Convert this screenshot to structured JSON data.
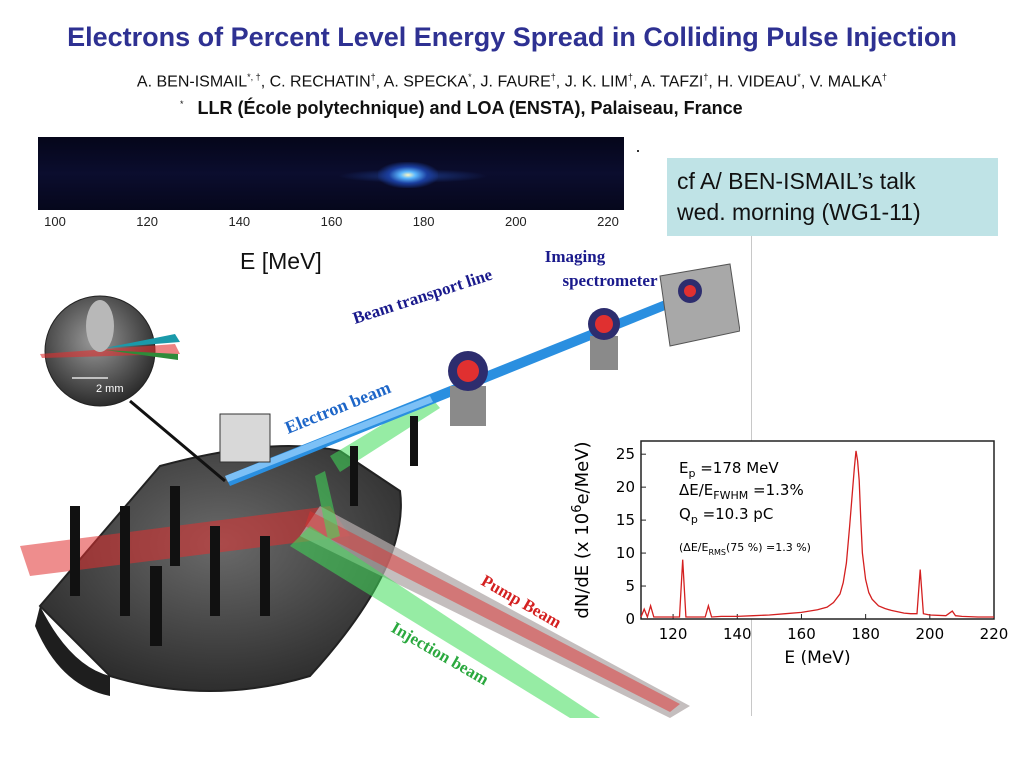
{
  "slide": {
    "title": "Electrons of Percent Level Energy Spread in Colliding Pulse Injection",
    "authors": [
      {
        "name": "A. BEN-ISMAIL",
        "mark": "*, †"
      },
      {
        "name": "C. RECHATIN",
        "mark": "†"
      },
      {
        "name": "A. SPECKA",
        "mark": "*"
      },
      {
        "name": "J. FAURE",
        "mark": "†"
      },
      {
        "name": "J. K. LIM",
        "mark": "†"
      },
      {
        "name": "A. TAFZI",
        "mark": "†"
      },
      {
        "name": "H. VIDEAU",
        "mark": "*"
      },
      {
        "name": "V. MALKA",
        "mark": "†"
      }
    ],
    "affiliation_mark": "*",
    "affiliation": "LLR (École polytechnique) and LOA (ENSTA), Palaiseau, France",
    "note_line1": "cf A/ BEN-ISMAIL’s talk",
    "note_line2": "wed. morning (WG1-11)",
    "energy_label": "E [MeV]"
  },
  "spectrometer_image": {
    "tick_labels": [
      "100",
      "120",
      "140",
      "160",
      "180",
      "200",
      "220"
    ]
  },
  "setup": {
    "labels": {
      "beam_transport": "Beam transport line",
      "imaging1": "Imaging",
      "imaging2": "spectrometer",
      "electron_beam": "Electron beam",
      "pump_beam": "Pump Beam",
      "injection_beam": "Injection beam",
      "scale": "2 mm"
    },
    "colors": {
      "electron_beam": "#2a8fe0",
      "pump_beam": "#e03030",
      "injection_beam": "#3fdc5a",
      "label_text": "#1a1a8c"
    }
  },
  "chart_data": {
    "type": "line",
    "xlabel": "E (MeV)",
    "ylabel": "dN/dE (x 10",
    "ylabel_sup": "6",
    "ylabel_tail": "e/MeV)",
    "xlim": [
      110,
      220
    ],
    "ylim": [
      0,
      27
    ],
    "xticks": [
      120,
      140,
      160,
      180,
      200,
      220
    ],
    "yticks": [
      0,
      5,
      10,
      15,
      20,
      25
    ],
    "grid": false,
    "color": "#d42020",
    "annotations": [
      {
        "main": "E",
        "sub": "p",
        "rest": " =178 MeV"
      },
      {
        "main": "ΔE/E",
        "sub": "FWHM",
        "rest": " =1.3%"
      },
      {
        "main": "Q",
        "sub": "p",
        "rest": " =10.3 pC"
      },
      {
        "main": "(ΔE/E",
        "sub": "RMS",
        "rest": "(75 %) =1.3 %)"
      }
    ],
    "series": [
      {
        "x": [
          110,
          111,
          112,
          113,
          114,
          115,
          120,
          122,
          123,
          124,
          126,
          130,
          131,
          132,
          135,
          140,
          145,
          150,
          155,
          160,
          165,
          168,
          170,
          172,
          173,
          174,
          175,
          176,
          176.5,
          177,
          177.5,
          178,
          178.5,
          179,
          180,
          181,
          182,
          184,
          186,
          188,
          190,
          192,
          194,
          196,
          197,
          198,
          200,
          205,
          207,
          208,
          210,
          215,
          218,
          220
        ],
        "y": [
          0.3,
          1.5,
          0.3,
          2,
          0.3,
          0.3,
          0.3,
          0.3,
          9,
          0.3,
          0.3,
          0.3,
          2,
          0.3,
          0.4,
          0.4,
          0.5,
          0.6,
          0.8,
          1.0,
          1.4,
          1.8,
          2.5,
          3.8,
          5.5,
          8.5,
          14,
          20,
          23,
          25.5,
          24,
          21,
          15,
          10,
          6,
          4,
          3,
          2,
          1.6,
          1.3,
          1.1,
          0.9,
          0.8,
          0.8,
          7.5,
          0.8,
          0.6,
          0.5,
          1.2,
          0.5,
          0.4,
          0.3,
          0.3,
          0.3
        ]
      }
    ]
  }
}
